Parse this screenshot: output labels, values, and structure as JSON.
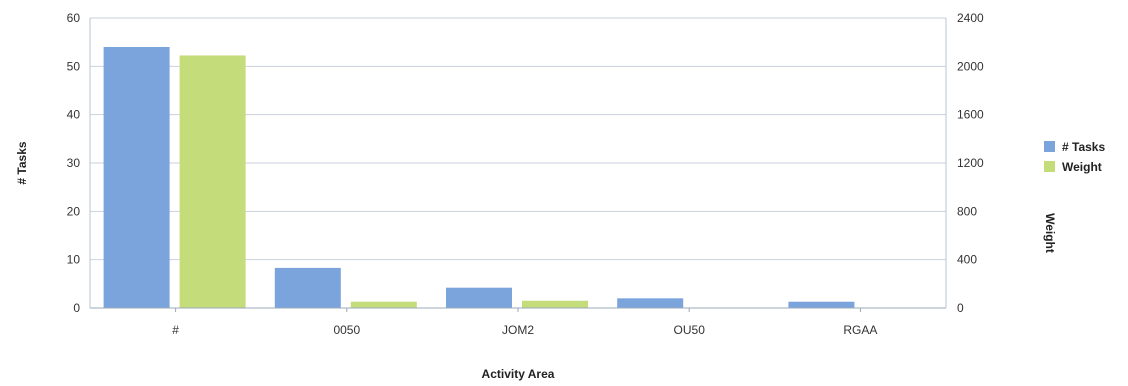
{
  "chart_data": {
    "type": "bar",
    "title": "",
    "xlabel": "Activity Area",
    "ylabel": "# Tasks",
    "y2label": "Weight",
    "categories": [
      "#",
      "0050",
      "JOM2",
      "OU50",
      "RGAA"
    ],
    "ylim": [
      0,
      60
    ],
    "yticks": [
      "0",
      "10",
      "20",
      "30",
      "40",
      "50",
      "60"
    ],
    "y2lim": [
      0,
      2400
    ],
    "y2ticks": [
      "0",
      "400",
      "800",
      "1200",
      "1600",
      "2000",
      "2400"
    ],
    "grid": true,
    "legend_position": "right",
    "series": [
      {
        "name": "# Tasks",
        "axis": "left",
        "color": "#7ba3dc",
        "values": [
          54,
          8.3,
          4.2,
          2.0,
          1.3
        ]
      },
      {
        "name": "Weight",
        "axis": "right",
        "color": "#c5dc7a",
        "values": [
          2090,
          52,
          60,
          0,
          0
        ]
      }
    ]
  }
}
